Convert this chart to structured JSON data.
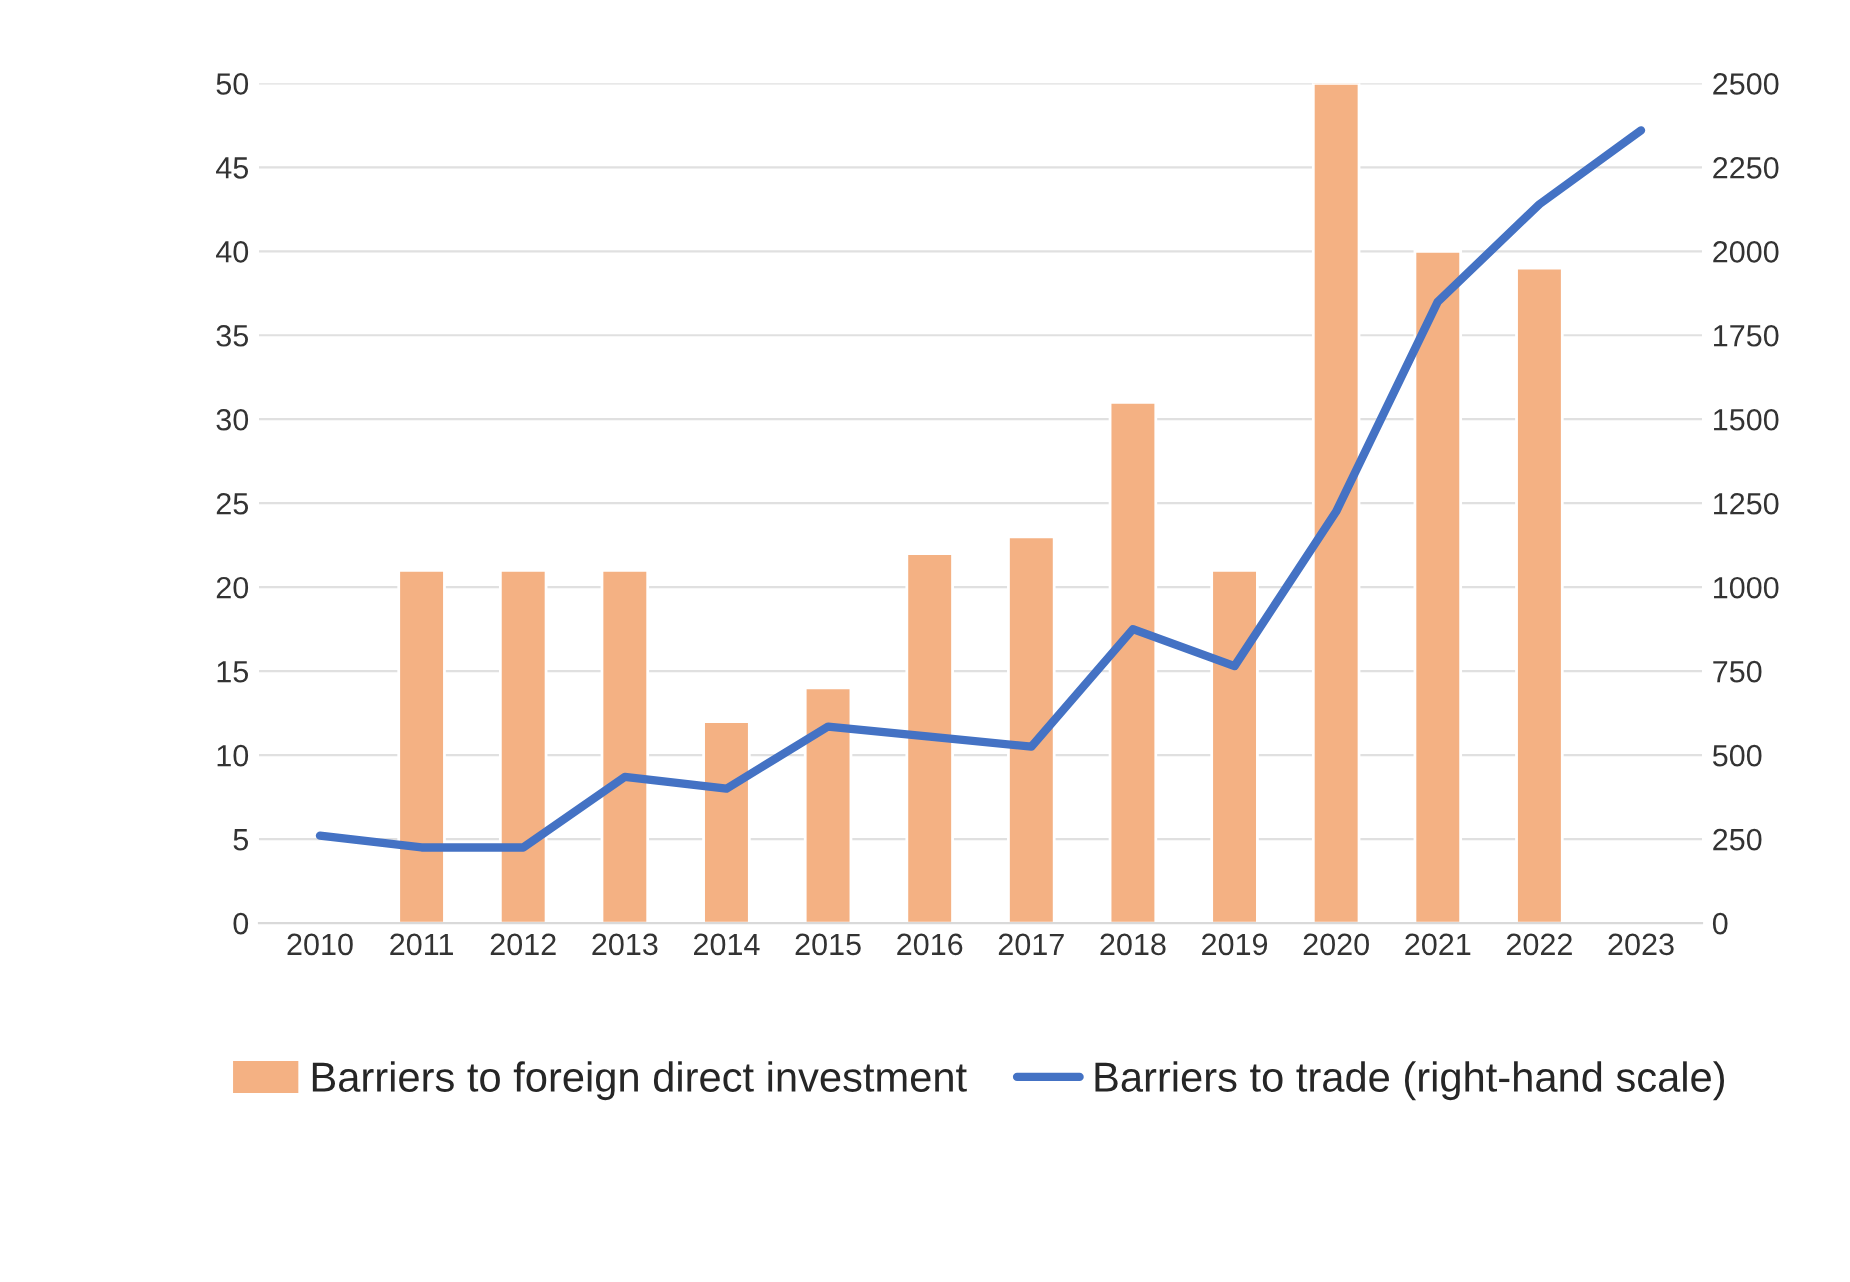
{
  "chart_data": {
    "type": "bar",
    "categories": [
      "2010",
      "2011",
      "2012",
      "2013",
      "2014",
      "2015",
      "2016",
      "2017",
      "2018",
      "2019",
      "2020",
      "2021",
      "2022",
      "2023"
    ],
    "series": [
      {
        "name": "Barriers to foreign direct investment",
        "color": "#f4b183",
        "values": [
          null,
          21,
          21,
          21,
          12,
          14,
          22,
          23,
          31,
          21,
          50,
          40,
          39,
          null
        ]
      },
      {
        "name": "Barriers to trade (right-hand scale)",
        "type": "line",
        "axis": "y2",
        "color": "#4472c4",
        "values": [
          260,
          225,
          225,
          435,
          400,
          585,
          555,
          525,
          875,
          765,
          1225,
          1850,
          2140,
          2360
        ]
      }
    ],
    "ylim": [
      0,
      50
    ],
    "yticks": [
      0,
      5,
      10,
      15,
      20,
      25,
      30,
      35,
      40,
      45,
      50
    ],
    "y2lim": [
      0,
      2500
    ],
    "y2ticks": [
      0,
      250,
      500,
      750,
      1000,
      1250,
      1500,
      1750,
      2000,
      2250,
      2500
    ],
    "grid": "y",
    "legend": "bottom",
    "marker": "none",
    "line_style": "solid"
  }
}
